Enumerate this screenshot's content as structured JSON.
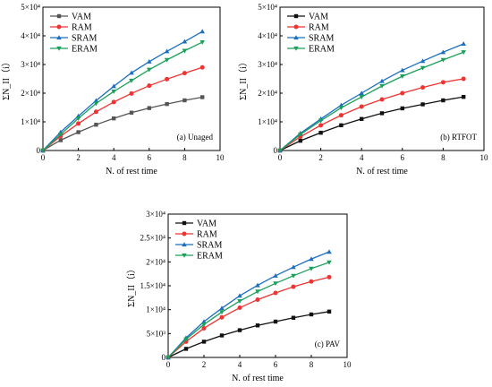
{
  "chart_data": [
    {
      "type": "line",
      "panel_label": "(a) Unaged",
      "xlabel": "N. of rest time",
      "ylabel": "ΣN_II（i）",
      "xlim": [
        0,
        10
      ],
      "ylim": [
        0,
        50000
      ],
      "x_ticks": [
        "0",
        "2",
        "4",
        "6",
        "8",
        "10"
      ],
      "y_ticks": [
        "0",
        "1×10⁴",
        "2×10⁴",
        "3×10⁴",
        "4×10⁴",
        "5×10⁴"
      ],
      "legend_position": "top-left",
      "x": [
        0,
        1,
        2,
        3,
        4,
        5,
        6,
        7,
        8,
        9
      ],
      "series": [
        {
          "name": "VAM",
          "color": "#555555",
          "marker": "square",
          "values": [
            0,
            3600,
            6400,
            9000,
            11200,
            13200,
            14800,
            16200,
            17500,
            18600
          ]
        },
        {
          "name": "RAM",
          "color": "#ee3333",
          "marker": "circle",
          "values": [
            0,
            5000,
            9400,
            13500,
            16900,
            19900,
            22600,
            24900,
            27000,
            29000
          ]
        },
        {
          "name": "SRAM",
          "color": "#1c6fc0",
          "marker": "triangle-up",
          "values": [
            0,
            6400,
            12000,
            17400,
            22400,
            27100,
            31000,
            34600,
            38000,
            41500
          ]
        },
        {
          "name": "ERAM",
          "color": "#1aa05a",
          "marker": "triangle-down",
          "values": [
            0,
            5600,
            11200,
            16400,
            20600,
            24400,
            28200,
            31600,
            34800,
            37800
          ]
        }
      ]
    },
    {
      "type": "line",
      "panel_label": "(b) RTFOT",
      "xlabel": "N. of rest time",
      "ylabel": "ΣN_II（i）",
      "xlim": [
        0,
        10
      ],
      "ylim": [
        0,
        50000
      ],
      "x_ticks": [
        "0",
        "2",
        "4",
        "6",
        "8",
        "10"
      ],
      "y_ticks": [
        "0",
        "1×10⁴",
        "2×10⁴",
        "3×10⁴",
        "4×10⁴",
        "5×10⁴"
      ],
      "legend_position": "top-left",
      "x": [
        0,
        1,
        2,
        3,
        4,
        5,
        6,
        7,
        8,
        9
      ],
      "series": [
        {
          "name": "VAM",
          "color": "#111111",
          "marker": "square",
          "values": [
            0,
            3400,
            6200,
            8800,
            11000,
            13000,
            14700,
            16100,
            17500,
            18700
          ]
        },
        {
          "name": "RAM",
          "color": "#ee3333",
          "marker": "circle",
          "values": [
            0,
            4800,
            8800,
            12300,
            15300,
            17800,
            20000,
            22000,
            23800,
            25000
          ]
        },
        {
          "name": "SRAM",
          "color": "#1c6fc0",
          "marker": "triangle-up",
          "values": [
            0,
            6000,
            11000,
            15800,
            20000,
            24200,
            28000,
            31200,
            34300,
            37200
          ]
        },
        {
          "name": "ERAM",
          "color": "#1aa05a",
          "marker": "triangle-down",
          "values": [
            0,
            5600,
            10400,
            14900,
            18700,
            22500,
            25900,
            28800,
            31600,
            34300
          ]
        }
      ]
    },
    {
      "type": "line",
      "panel_label": "(c) PAV",
      "xlabel": "N. of rest time",
      "ylabel": "ΣN_II（i）",
      "xlim": [
        0,
        10
      ],
      "ylim": [
        0,
        30000
      ],
      "x_ticks": [
        "0",
        "2",
        "4",
        "6",
        "8",
        "10"
      ],
      "y_ticks": [
        "0",
        "5×10³",
        "1×10⁴",
        "1.5×10⁴",
        "2×10⁴",
        "2.5×10⁴",
        "3×10⁴"
      ],
      "legend_position": "top-left",
      "x": [
        0,
        1,
        2,
        3,
        4,
        5,
        6,
        7,
        8,
        9
      ],
      "series": [
        {
          "name": "VAM",
          "color": "#111111",
          "marker": "square",
          "values": [
            0,
            1800,
            3300,
            4600,
            5700,
            6700,
            7500,
            8300,
            9000,
            9600
          ]
        },
        {
          "name": "RAM",
          "color": "#ee3333",
          "marker": "circle",
          "values": [
            0,
            3300,
            6100,
            8400,
            10400,
            12100,
            13500,
            14800,
            15900,
            16800
          ]
        },
        {
          "name": "SRAM",
          "color": "#1c6fc0",
          "marker": "triangle-up",
          "values": [
            0,
            4100,
            7500,
            10300,
            12900,
            15100,
            17100,
            18900,
            20600,
            22100
          ]
        },
        {
          "name": "ERAM",
          "color": "#1aa05a",
          "marker": "triangle-down",
          "values": [
            0,
            3800,
            6900,
            9500,
            11800,
            13800,
            15500,
            17100,
            18600,
            19900
          ]
        }
      ]
    }
  ]
}
